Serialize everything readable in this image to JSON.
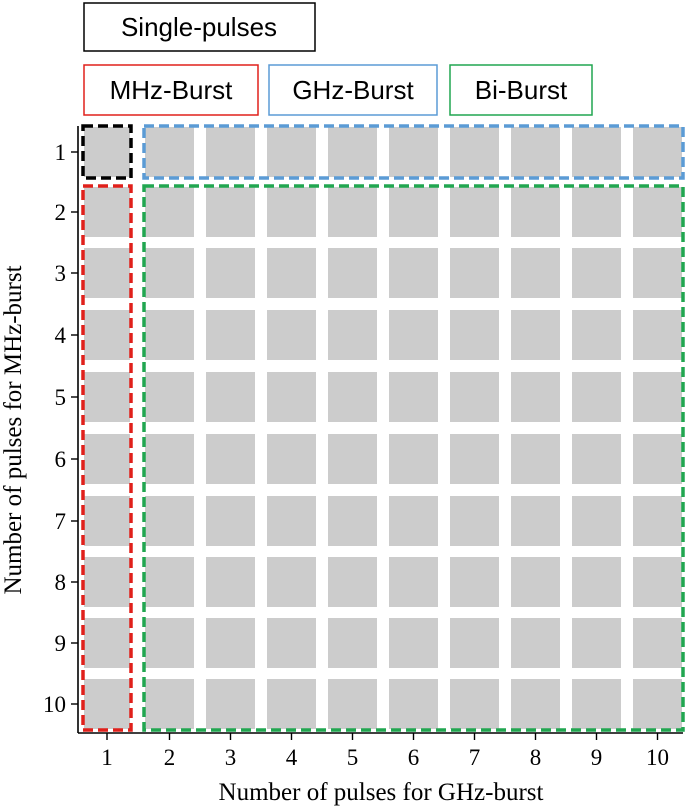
{
  "legend": [
    {
      "label": "Single-pulses",
      "color": "#000000"
    },
    {
      "label": "MHz-Burst",
      "color": "#e0201b"
    },
    {
      "label": "GHz-Burst",
      "color": "#5b9bd5"
    },
    {
      "label": "Bi-Burst",
      "color": "#21a650"
    }
  ],
  "axes": {
    "x_label": "Number of pulses for GHz-burst",
    "y_label": "Number of pulses for MHz-burst",
    "x_ticks": [
      "1",
      "2",
      "3",
      "4",
      "5",
      "6",
      "7",
      "8",
      "9",
      "10"
    ],
    "y_ticks": [
      "1",
      "2",
      "3",
      "4",
      "5",
      "6",
      "7",
      "8",
      "9",
      "10"
    ]
  },
  "grid": {
    "columns": 10,
    "rows": 10,
    "cell_color": "#cccccc"
  },
  "regions": [
    {
      "name": "single-pulses-region",
      "color": "#000000",
      "cols": [
        1,
        1
      ],
      "rows": [
        1,
        1
      ]
    },
    {
      "name": "ghz-burst-region",
      "color": "#5b9bd5",
      "cols": [
        2,
        10
      ],
      "rows": [
        1,
        1
      ]
    },
    {
      "name": "mhz-burst-region",
      "color": "#e0201b",
      "cols": [
        1,
        1
      ],
      "rows": [
        2,
        10
      ]
    },
    {
      "name": "bi-burst-region",
      "color": "#21a650",
      "cols": [
        2,
        10
      ],
      "rows": [
        2,
        10
      ]
    }
  ]
}
